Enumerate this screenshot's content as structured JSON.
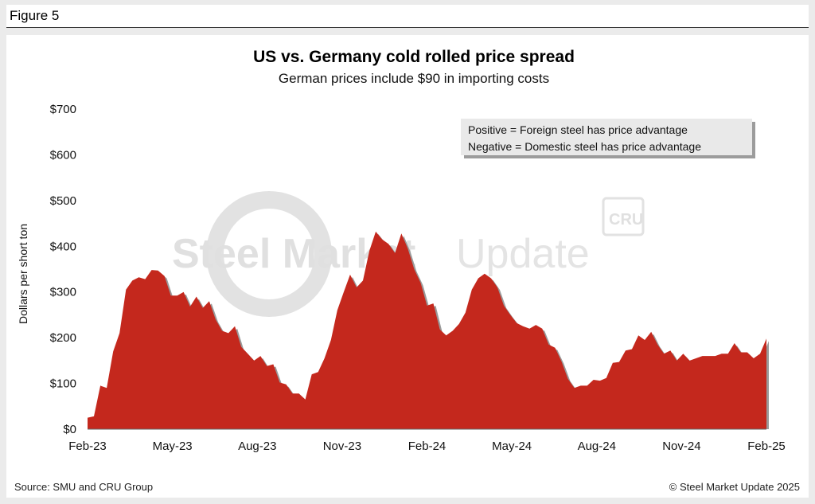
{
  "figure_label": "Figure 5",
  "source": "Source: SMU and CRU Group",
  "copyright": "© Steel Market Update 2025",
  "watermark": {
    "text_bold": "Steel Market",
    "text_light": "Update",
    "badge": "CRU"
  },
  "colors": {
    "area": "#c4281d",
    "shadow": "#9a9a9a",
    "watermark": "#e2e2e2"
  },
  "chart_data": {
    "type": "area",
    "title": "US vs. Germany cold rolled price spread",
    "subtitle": "German prices include $90 in importing costs",
    "ylabel": "Dollars per short ton",
    "xlabel": "",
    "ylim": [
      0,
      700
    ],
    "yticks": [
      0,
      100,
      200,
      300,
      400,
      500,
      600,
      700
    ],
    "ytick_labels": [
      "$0",
      "$100",
      "$200",
      "$300",
      "$400",
      "$500",
      "$600",
      "$700"
    ],
    "xtick_labels": [
      "Feb-23",
      "May-23",
      "Aug-23",
      "Nov-23",
      "Feb-24",
      "May-24",
      "Aug-24",
      "Nov-24",
      "Feb-25"
    ],
    "grid": false,
    "annotation": [
      "Positive = Foreign steel has price advantage",
      "Negative = Domestic steel has price advantage"
    ],
    "x_start": "2023-02",
    "x_step": "weekly",
    "values": [
      25,
      28,
      95,
      90,
      170,
      210,
      305,
      325,
      332,
      328,
      348,
      347,
      335,
      292,
      292,
      300,
      268,
      290,
      265,
      280,
      240,
      215,
      210,
      225,
      180,
      165,
      150,
      160,
      138,
      142,
      102,
      98,
      78,
      78,
      65,
      120,
      125,
      155,
      195,
      260,
      300,
      338,
      310,
      325,
      390,
      432,
      415,
      405,
      385,
      428,
      395,
      350,
      320,
      270,
      275,
      218,
      205,
      215,
      230,
      255,
      305,
      330,
      340,
      330,
      310,
      270,
      250,
      232,
      225,
      220,
      228,
      220,
      185,
      178,
      148,
      110,
      90,
      95,
      95,
      108,
      106,
      112,
      145,
      147,
      172,
      175,
      205,
      195,
      213,
      185,
      165,
      172,
      150,
      165,
      150,
      155,
      160,
      160,
      160,
      165,
      165,
      188,
      168,
      168,
      155,
      165,
      198
    ]
  }
}
